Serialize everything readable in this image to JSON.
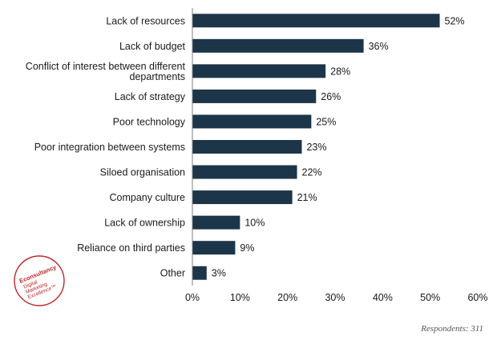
{
  "chart_data": {
    "type": "bar",
    "orientation": "horizontal",
    "categories": [
      "Lack of resources",
      "Lack of budget",
      "Conflict of interest between different departments",
      "Lack of strategy",
      "Poor technology",
      "Poor integration between systems",
      "Siloed organisation",
      "Company culture",
      "Lack of ownership",
      "Reliance on third parties",
      "Other"
    ],
    "category_lines": [
      [
        "Lack of resources"
      ],
      [
        "Lack of budget"
      ],
      [
        "Conflict of interest between different",
        "departments"
      ],
      [
        "Lack of strategy"
      ],
      [
        "Poor technology"
      ],
      [
        "Poor integration between systems"
      ],
      [
        "Siloed organisation"
      ],
      [
        "Company culture"
      ],
      [
        "Lack of ownership"
      ],
      [
        "Reliance on third parties"
      ],
      [
        "Other"
      ]
    ],
    "values": [
      52,
      36,
      28,
      26,
      25,
      23,
      22,
      21,
      10,
      9,
      3
    ],
    "value_labels": [
      "52%",
      "36%",
      "28%",
      "26%",
      "25%",
      "23%",
      "22%",
      "21%",
      "10%",
      "9%",
      "3%"
    ],
    "xlim": [
      0,
      60
    ],
    "xticks": [
      0,
      10,
      20,
      30,
      40,
      50,
      60
    ],
    "xtick_labels": [
      "0%",
      "10%",
      "20%",
      "30%",
      "40%",
      "50%",
      "60%"
    ],
    "grid": false,
    "legend": "none",
    "bar_color": "#1c3549"
  },
  "footnote": "Respondents: 311",
  "logo": {
    "lines": [
      "Econsultancy",
      "Digital",
      "Marketing",
      "Excellence™"
    ],
    "color": "#c0262d"
  }
}
